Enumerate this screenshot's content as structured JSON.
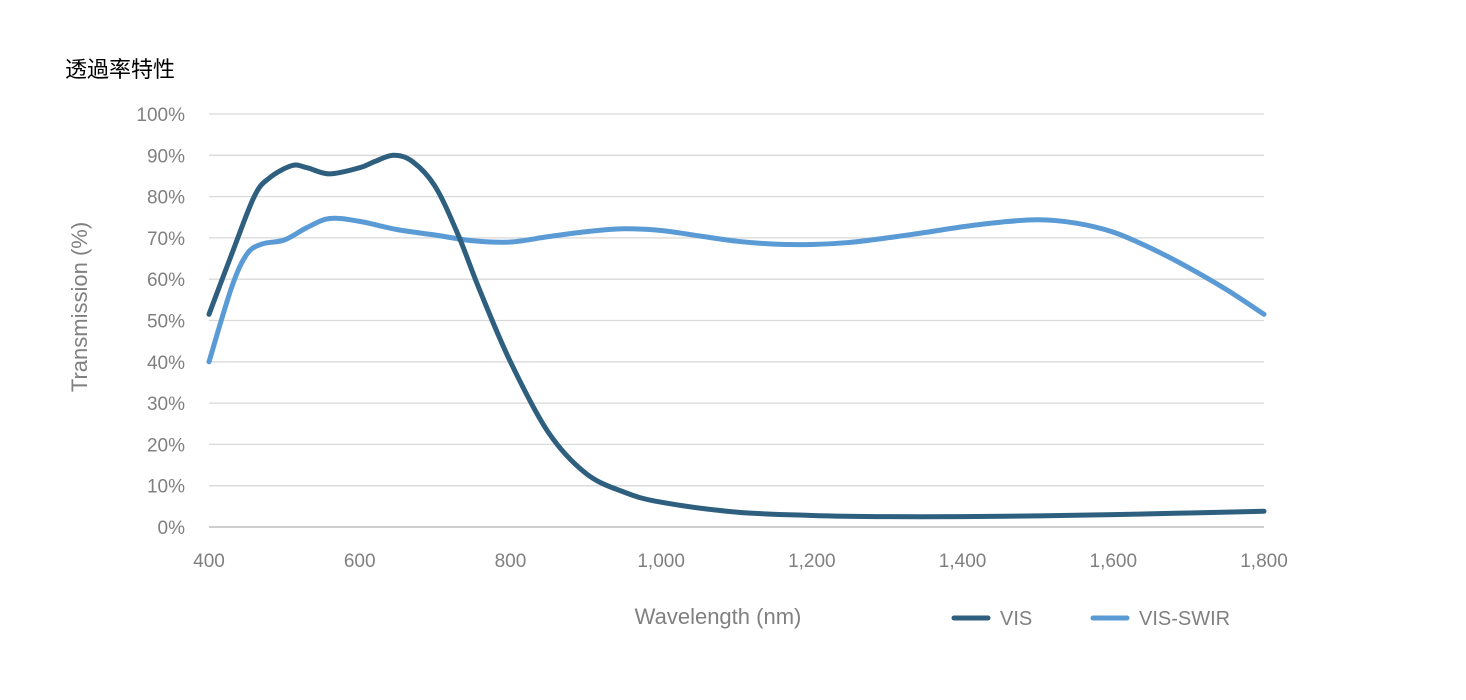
{
  "chart_data": {
    "type": "line",
    "title": "透過率特性",
    "xlabel": "Wavelength (nm)",
    "ylabel": "Transmission (%)",
    "xlim": [
      400,
      1800
    ],
    "ylim": [
      0,
      100
    ],
    "x_ticks": [
      400,
      600,
      800,
      1000,
      1200,
      1400,
      1600,
      1800
    ],
    "x_tick_labels": [
      "400",
      "600",
      "800",
      "1,000",
      "1,200",
      "1,400",
      "1,600",
      "1,800"
    ],
    "y_ticks": [
      0,
      10,
      20,
      30,
      40,
      50,
      60,
      70,
      80,
      90,
      100
    ],
    "y_tick_labels": [
      "0%",
      "10%",
      "20%",
      "30%",
      "40%",
      "50%",
      "60%",
      "70%",
      "80%",
      "90%",
      "100%"
    ],
    "grid": "horizontal",
    "legend_position": "bottom-right",
    "series": [
      {
        "name": "VIS",
        "color": "#2e5f7f",
        "points": [
          [
            400,
            51.5
          ],
          [
            430,
            66
          ],
          [
            460,
            80
          ],
          [
            480,
            84.5
          ],
          [
            510,
            87.5
          ],
          [
            530,
            87
          ],
          [
            560,
            85.5
          ],
          [
            600,
            87
          ],
          [
            620,
            88.5
          ],
          [
            645,
            90
          ],
          [
            670,
            88.5
          ],
          [
            700,
            82.5
          ],
          [
            730,
            71
          ],
          [
            760,
            57
          ],
          [
            800,
            40
          ],
          [
            850,
            23
          ],
          [
            900,
            13
          ],
          [
            950,
            8.5
          ],
          [
            1000,
            6
          ],
          [
            1100,
            3.6
          ],
          [
            1200,
            2.8
          ],
          [
            1300,
            2.5
          ],
          [
            1400,
            2.5
          ],
          [
            1500,
            2.7
          ],
          [
            1600,
            3
          ],
          [
            1700,
            3.4
          ],
          [
            1800,
            3.8
          ]
        ]
      },
      {
        "name": "VIS-SWIR",
        "color": "#5b9bd5",
        "points": [
          [
            400,
            40
          ],
          [
            430,
            58
          ],
          [
            450,
            66
          ],
          [
            470,
            68.5
          ],
          [
            500,
            69.5
          ],
          [
            530,
            72.5
          ],
          [
            560,
            74.7
          ],
          [
            600,
            74
          ],
          [
            650,
            72
          ],
          [
            700,
            70.7
          ],
          [
            750,
            69.3
          ],
          [
            800,
            69
          ],
          [
            850,
            70.3
          ],
          [
            900,
            71.5
          ],
          [
            950,
            72.2
          ],
          [
            1000,
            71.8
          ],
          [
            1050,
            70.5
          ],
          [
            1100,
            69.2
          ],
          [
            1150,
            68.5
          ],
          [
            1200,
            68.4
          ],
          [
            1250,
            68.9
          ],
          [
            1300,
            70
          ],
          [
            1350,
            71.3
          ],
          [
            1400,
            72.7
          ],
          [
            1450,
            73.8
          ],
          [
            1500,
            74.4
          ],
          [
            1550,
            73.6
          ],
          [
            1600,
            71.4
          ],
          [
            1650,
            67.5
          ],
          [
            1700,
            62.8
          ],
          [
            1750,
            57.5
          ],
          [
            1800,
            51.5
          ]
        ]
      }
    ]
  }
}
